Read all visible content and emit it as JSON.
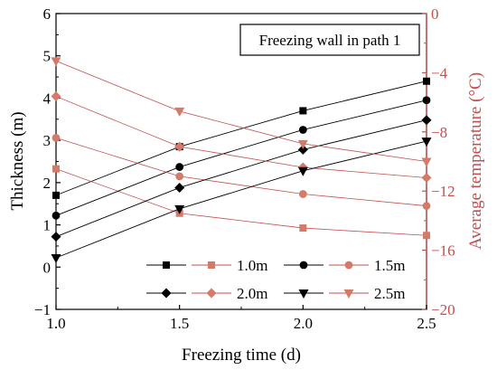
{
  "chart_data": {
    "type": "line",
    "annotation": "Freezing wall in path 1",
    "x": [
      1.0,
      1.5,
      2.0,
      2.5
    ],
    "xlabel": "Freezing time (d)",
    "ylabel_left": "Thickness (m)",
    "ylabel_right": "Average temperature (°C)",
    "xlim": [
      1.0,
      2.5
    ],
    "ylim_left": [
      -1,
      6
    ],
    "ylim_right": [
      -20,
      0
    ],
    "xticks": [
      "1.0",
      "1.5",
      "2.0",
      "2.5"
    ],
    "yticks_left": [
      "−1",
      "0",
      "1",
      "2",
      "3",
      "4",
      "5",
      "6"
    ],
    "yticks_right": [
      "−20",
      "−16",
      "−12",
      "−8",
      "−4",
      "0"
    ],
    "legend_position": "bottom-right",
    "colors": {
      "thickness": "#000000",
      "temperature": "#c0504d",
      "temperature_marker": "#d47a6a"
    },
    "series": [
      {
        "name": "1.0m",
        "axis": "left",
        "marker": "square",
        "values": [
          1.7,
          2.85,
          3.7,
          4.4
        ]
      },
      {
        "name": "1.0m",
        "axis": "right",
        "marker": "square",
        "values": [
          -10.5,
          -13.5,
          -14.5,
          -15.0
        ]
      },
      {
        "name": "1.5m",
        "axis": "left",
        "marker": "circle",
        "values": [
          1.22,
          2.37,
          3.25,
          3.95
        ]
      },
      {
        "name": "1.5m",
        "axis": "right",
        "marker": "circle",
        "values": [
          -8.4,
          -11.0,
          -12.2,
          -13.0
        ]
      },
      {
        "name": "2.0m",
        "axis": "left",
        "marker": "diamond",
        "values": [
          0.72,
          1.88,
          2.78,
          3.48
        ]
      },
      {
        "name": "2.0m",
        "axis": "right",
        "marker": "diamond",
        "values": [
          -5.6,
          -9.0,
          -10.4,
          -11.1
        ]
      },
      {
        "name": "2.5m",
        "axis": "left",
        "marker": "triangle-down",
        "values": [
          0.22,
          1.38,
          2.28,
          2.98
        ]
      },
      {
        "name": "2.5m",
        "axis": "right",
        "marker": "triangle-down",
        "values": [
          -3.2,
          -6.6,
          -8.8,
          -10.0
        ]
      }
    ]
  }
}
